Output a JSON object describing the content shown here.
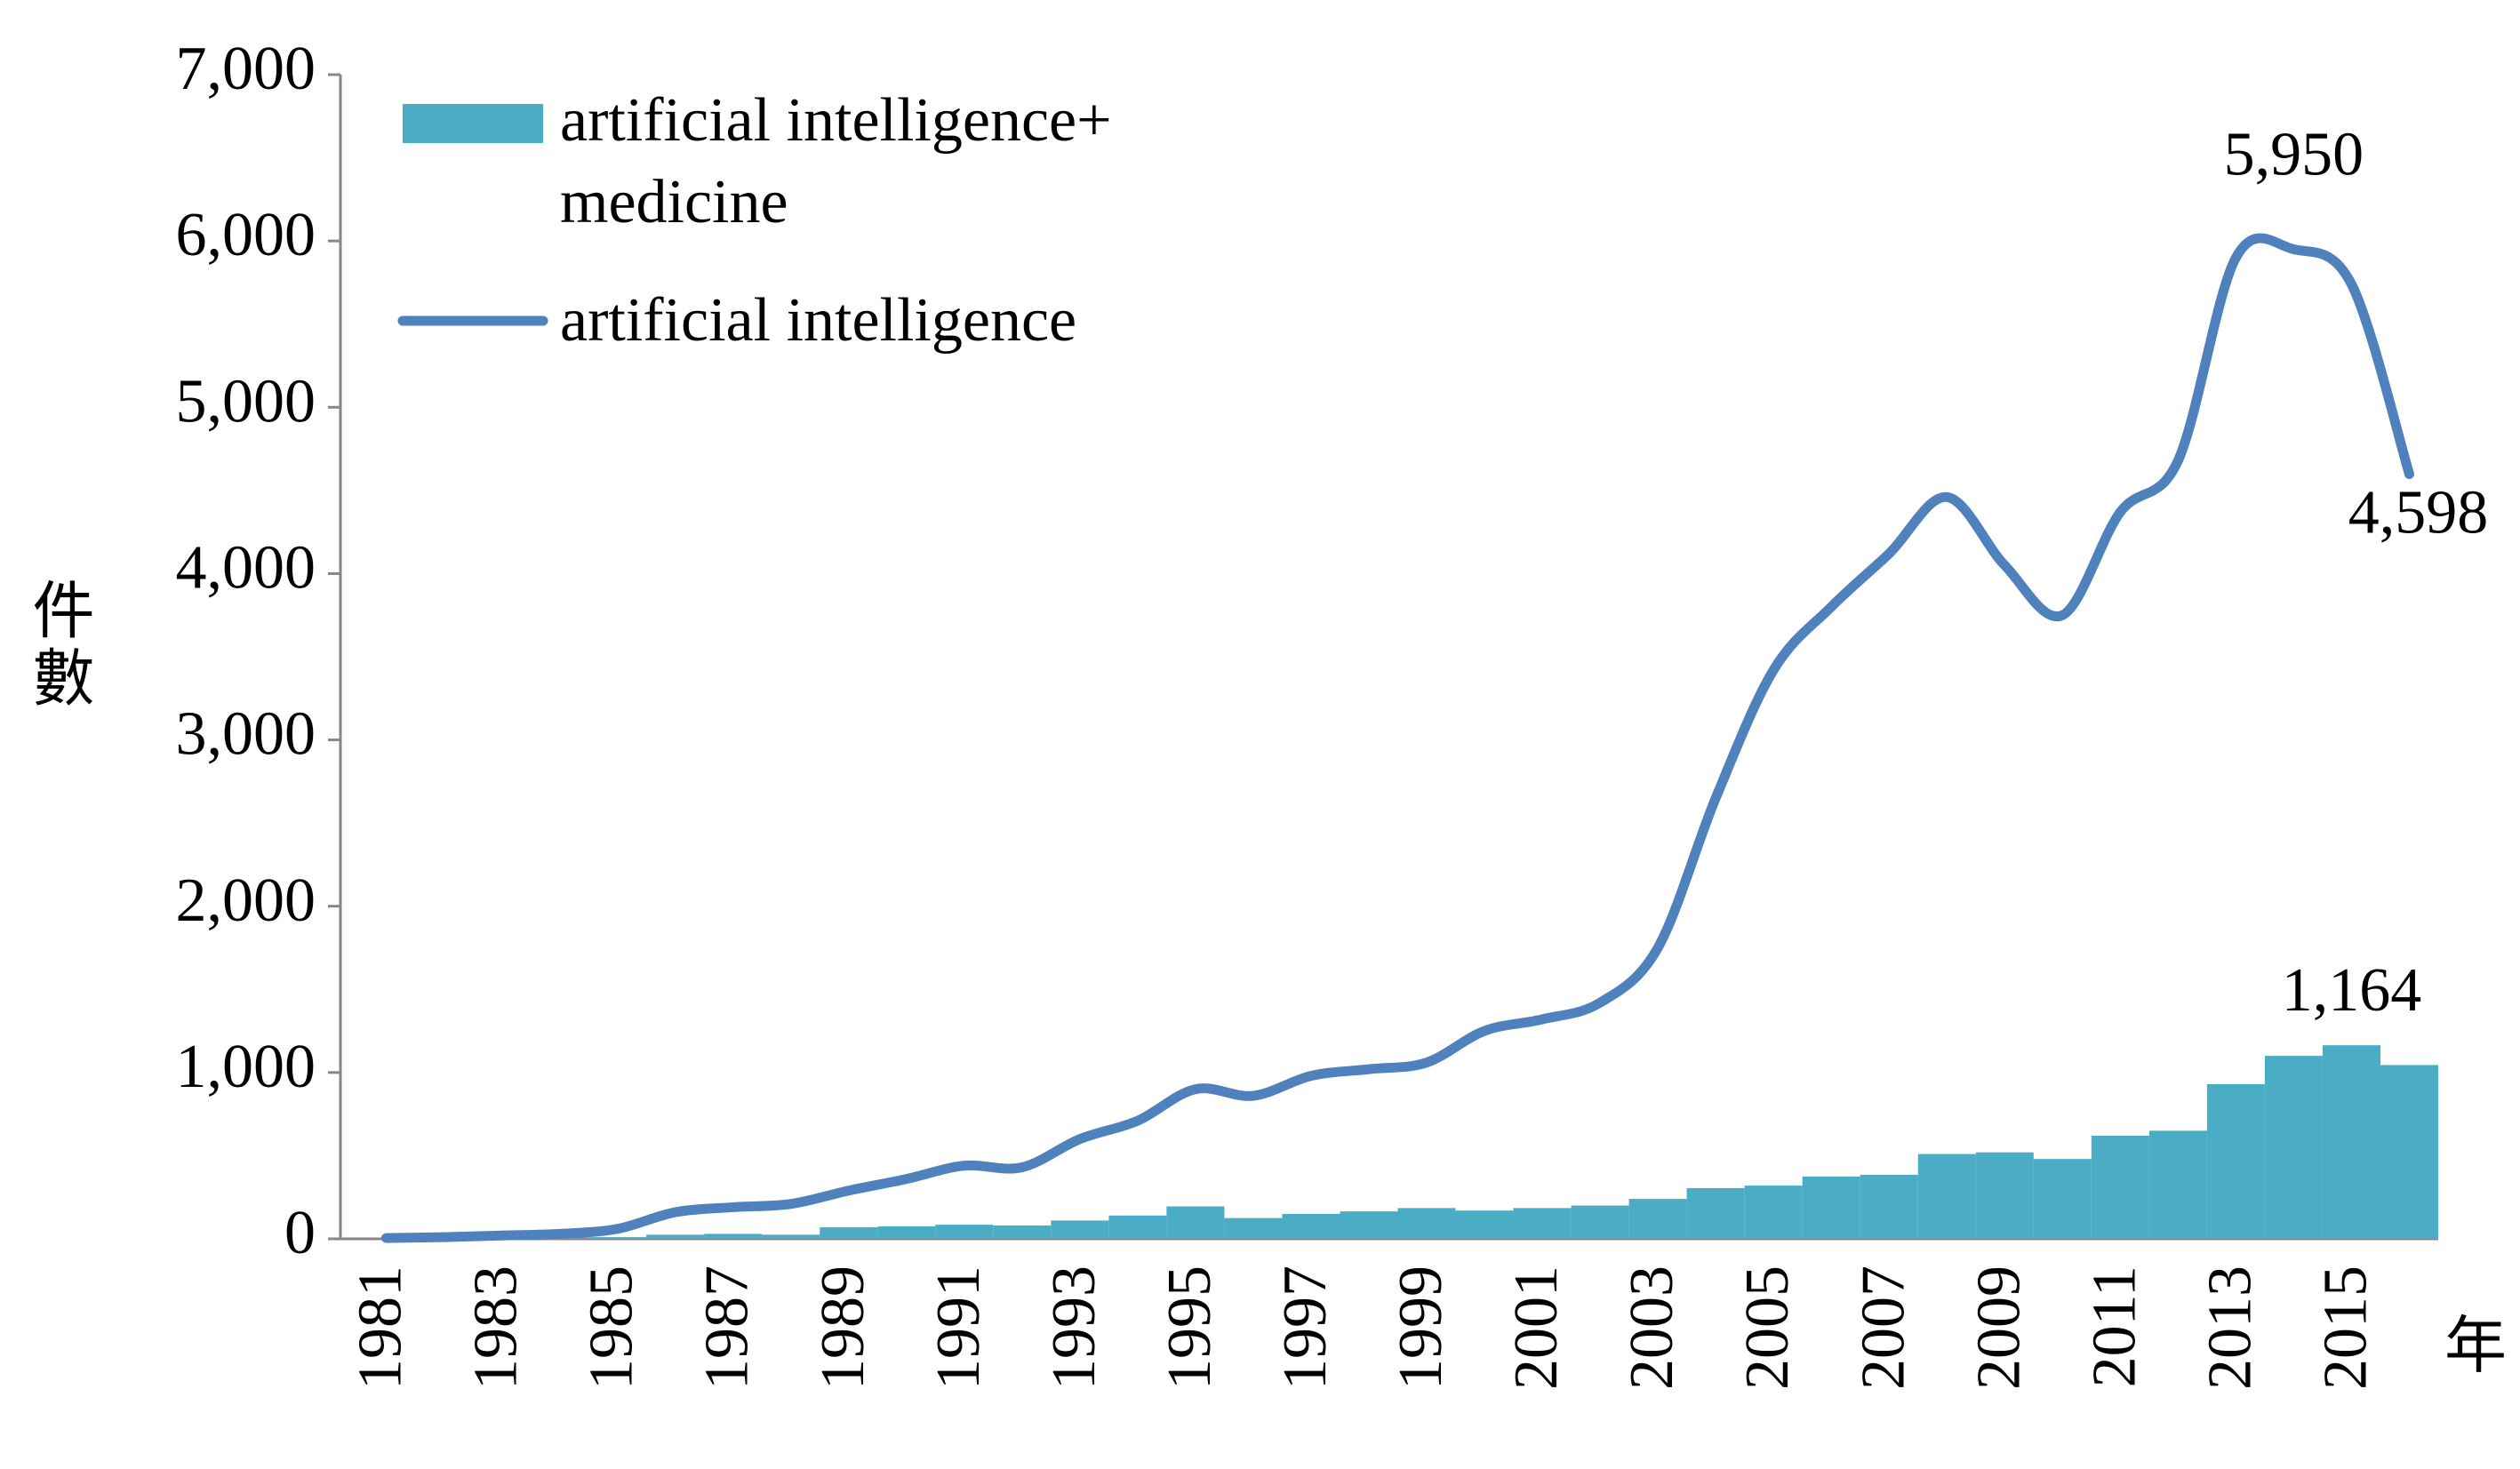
{
  "chart_data": {
    "type": "bar-line",
    "x_label": "年",
    "y_label": "件數",
    "categories": [
      "1981",
      null,
      "1983",
      null,
      "1985",
      null,
      "1987",
      null,
      "1989",
      null,
      "1991",
      null,
      "1993",
      null,
      "1995",
      null,
      "1997",
      null,
      "1999",
      null,
      "2001",
      null,
      "2003",
      null,
      "2005",
      null,
      "2007",
      null,
      "2009",
      null,
      "2011",
      null,
      "2013",
      null,
      "2015",
      null
    ],
    "series": [
      {
        "name": "artificial intelligence+ medicine",
        "type": "bar",
        "color": "#4bacc6",
        "values": [
          0,
          0,
          2,
          5,
          10,
          25,
          30,
          25,
          70,
          75,
          85,
          80,
          110,
          140,
          195,
          125,
          150,
          165,
          185,
          170,
          185,
          200,
          240,
          305,
          320,
          375,
          385,
          510,
          520,
          480,
          620,
          650,
          930,
          1100,
          1164,
          1045
        ],
        "value_labels": [
          null,
          null,
          null,
          null,
          null,
          null,
          null,
          null,
          null,
          null,
          null,
          null,
          null,
          null,
          null,
          null,
          null,
          null,
          null,
          null,
          null,
          null,
          null,
          null,
          null,
          null,
          null,
          null,
          null,
          null,
          null,
          null,
          null,
          null,
          "1,164",
          null
        ]
      },
      {
        "name": "artificial intelligence",
        "type": "line",
        "color": "#4f81bd",
        "values": [
          5,
          10,
          20,
          30,
          60,
          160,
          190,
          210,
          290,
          360,
          440,
          430,
          600,
          710,
          900,
          860,
          980,
          1020,
          1060,
          1250,
          1320,
          1420,
          1750,
          2650,
          3420,
          3800,
          4120,
          4460,
          4050,
          3750,
          4370,
          4680,
          5900,
          5950,
          5740,
          4598
        ],
        "value_labels": [
          null,
          null,
          null,
          null,
          null,
          null,
          null,
          null,
          null,
          null,
          null,
          null,
          null,
          null,
          null,
          null,
          null,
          null,
          null,
          null,
          null,
          null,
          null,
          null,
          null,
          null,
          null,
          null,
          null,
          null,
          null,
          null,
          null,
          "5,950",
          null,
          "4,598"
        ]
      }
    ],
    "ylim": [
      0,
      7000
    ],
    "yticks": [
      0,
      {
        "value": 1000,
        "label": "1,000"
      },
      {
        "value": 2000,
        "label": "2,000"
      },
      {
        "value": 3000,
        "label": "3,000"
      },
      {
        "value": 4000,
        "label": "4,000"
      },
      {
        "value": 5000,
        "label": "5,000"
      },
      {
        "value": 6000,
        "label": "6,000"
      },
      {
        "value": 7000,
        "label": "7,000"
      }
    ],
    "legend": "top-left"
  }
}
